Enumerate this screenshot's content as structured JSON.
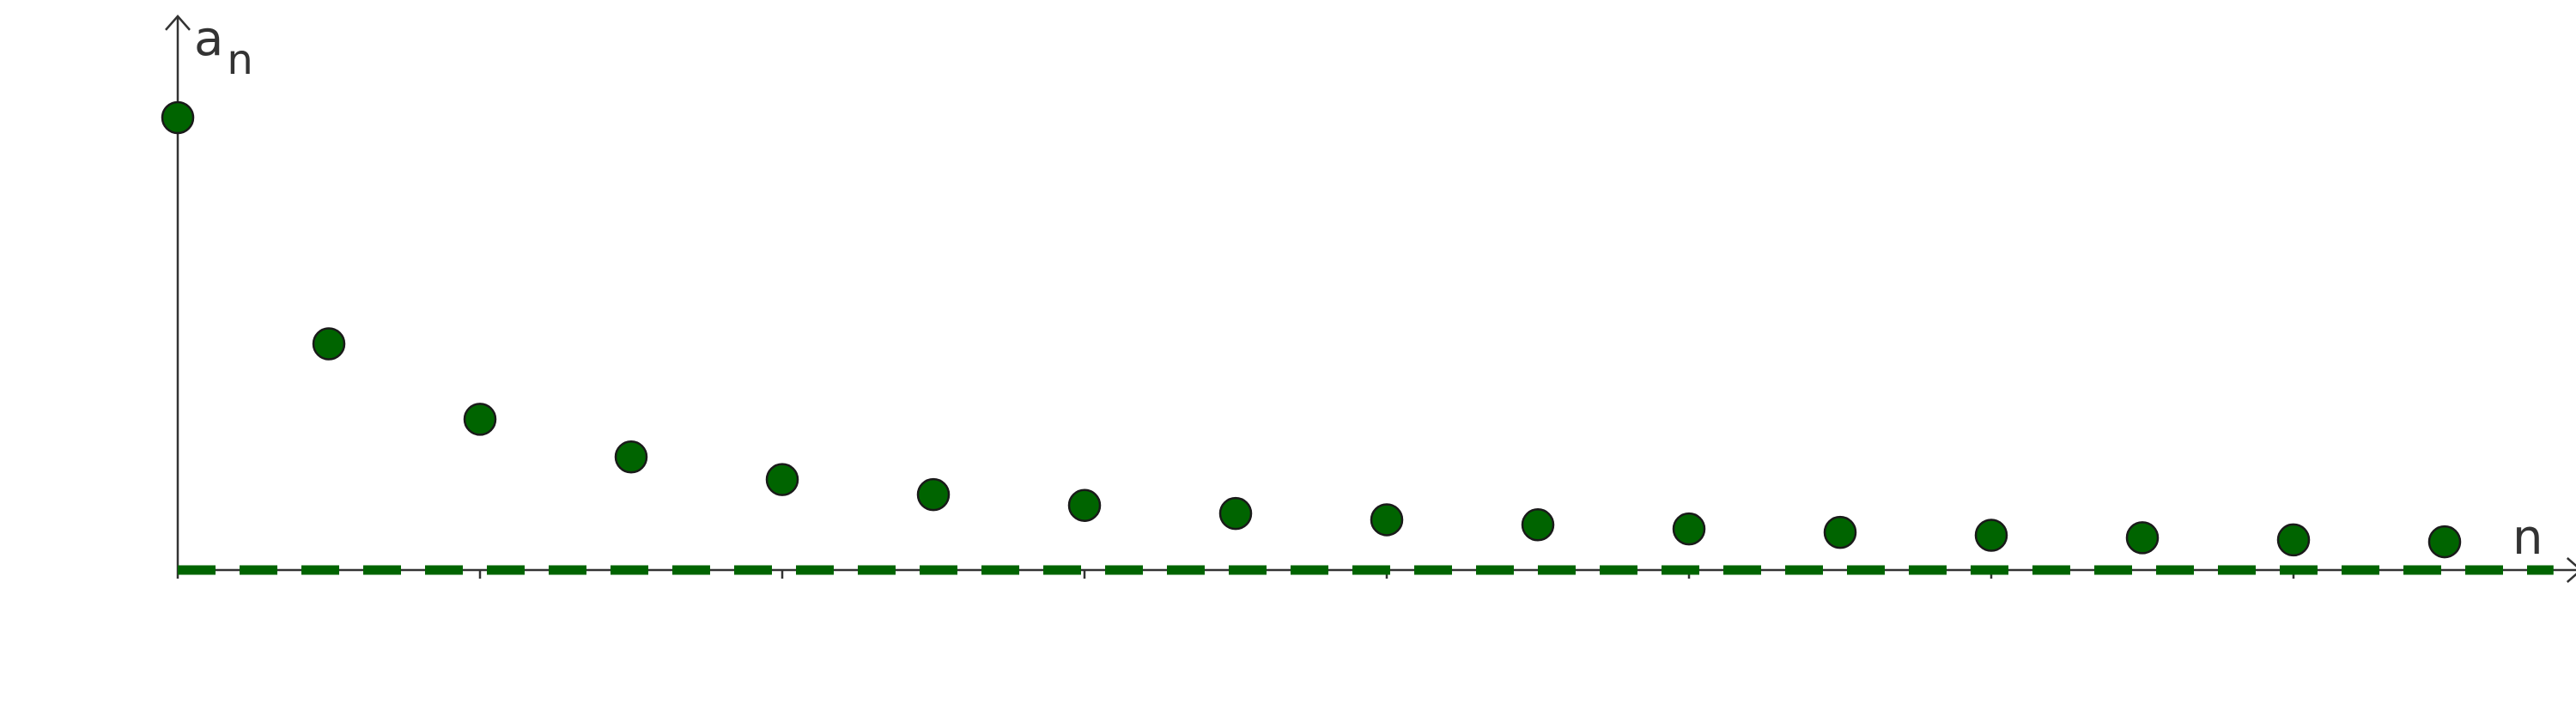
{
  "chart_data": {
    "type": "scatter",
    "title": "",
    "xlabel": "n",
    "ylabel_main": "a",
    "ylabel_sub": "n",
    "x": [
      1,
      2,
      3,
      4,
      5,
      6,
      7,
      8,
      9,
      10,
      11,
      12,
      13,
      14,
      15,
      16
    ],
    "values": [
      1,
      0.5,
      0.3333,
      0.25,
      0.2,
      0.1667,
      0.1429,
      0.125,
      0.1111,
      0.1,
      0.0909,
      0.0833,
      0.0769,
      0.0714,
      0.0667,
      0.0625
    ],
    "xlim": [
      1,
      16.8
    ],
    "ylim": [
      0,
      1.19
    ],
    "asymptote": {
      "y": 0,
      "style": "dashed"
    },
    "grid": false,
    "colors": {
      "point_fill": "#006400",
      "point_stroke": "#1a1a1a",
      "asymptote": "#006400",
      "axis": "#333333"
    }
  }
}
